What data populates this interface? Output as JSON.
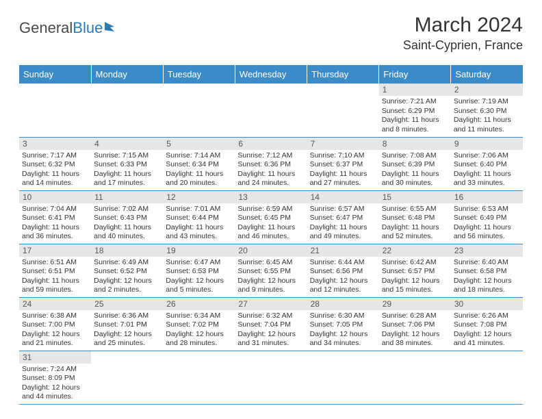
{
  "branding": {
    "logo_part1": "General",
    "logo_part2": "Blue"
  },
  "header": {
    "month_title": "March 2024",
    "location": "Saint-Cyprien, France"
  },
  "colors": {
    "header_bg": "#3b8bc9",
    "header_text": "#ffffff",
    "daynum_bg": "#e6e6e6",
    "border": "#3b8bc9"
  },
  "weekdays": [
    "Sunday",
    "Monday",
    "Tuesday",
    "Wednesday",
    "Thursday",
    "Friday",
    "Saturday"
  ],
  "weeks": [
    [
      null,
      null,
      null,
      null,
      null,
      {
        "n": "1",
        "sr": "7:21 AM",
        "ss": "6:29 PM",
        "dl": "11 hours and 8 minutes."
      },
      {
        "n": "2",
        "sr": "7:19 AM",
        "ss": "6:30 PM",
        "dl": "11 hours and 11 minutes."
      }
    ],
    [
      {
        "n": "3",
        "sr": "7:17 AM",
        "ss": "6:32 PM",
        "dl": "11 hours and 14 minutes."
      },
      {
        "n": "4",
        "sr": "7:15 AM",
        "ss": "6:33 PM",
        "dl": "11 hours and 17 minutes."
      },
      {
        "n": "5",
        "sr": "7:14 AM",
        "ss": "6:34 PM",
        "dl": "11 hours and 20 minutes."
      },
      {
        "n": "6",
        "sr": "7:12 AM",
        "ss": "6:36 PM",
        "dl": "11 hours and 24 minutes."
      },
      {
        "n": "7",
        "sr": "7:10 AM",
        "ss": "6:37 PM",
        "dl": "11 hours and 27 minutes."
      },
      {
        "n": "8",
        "sr": "7:08 AM",
        "ss": "6:39 PM",
        "dl": "11 hours and 30 minutes."
      },
      {
        "n": "9",
        "sr": "7:06 AM",
        "ss": "6:40 PM",
        "dl": "11 hours and 33 minutes."
      }
    ],
    [
      {
        "n": "10",
        "sr": "7:04 AM",
        "ss": "6:41 PM",
        "dl": "11 hours and 36 minutes."
      },
      {
        "n": "11",
        "sr": "7:02 AM",
        "ss": "6:43 PM",
        "dl": "11 hours and 40 minutes."
      },
      {
        "n": "12",
        "sr": "7:01 AM",
        "ss": "6:44 PM",
        "dl": "11 hours and 43 minutes."
      },
      {
        "n": "13",
        "sr": "6:59 AM",
        "ss": "6:45 PM",
        "dl": "11 hours and 46 minutes."
      },
      {
        "n": "14",
        "sr": "6:57 AM",
        "ss": "6:47 PM",
        "dl": "11 hours and 49 minutes."
      },
      {
        "n": "15",
        "sr": "6:55 AM",
        "ss": "6:48 PM",
        "dl": "11 hours and 52 minutes."
      },
      {
        "n": "16",
        "sr": "6:53 AM",
        "ss": "6:49 PM",
        "dl": "11 hours and 56 minutes."
      }
    ],
    [
      {
        "n": "17",
        "sr": "6:51 AM",
        "ss": "6:51 PM",
        "dl": "11 hours and 59 minutes."
      },
      {
        "n": "18",
        "sr": "6:49 AM",
        "ss": "6:52 PM",
        "dl": "12 hours and 2 minutes."
      },
      {
        "n": "19",
        "sr": "6:47 AM",
        "ss": "6:53 PM",
        "dl": "12 hours and 5 minutes."
      },
      {
        "n": "20",
        "sr": "6:45 AM",
        "ss": "6:55 PM",
        "dl": "12 hours and 9 minutes."
      },
      {
        "n": "21",
        "sr": "6:44 AM",
        "ss": "6:56 PM",
        "dl": "12 hours and 12 minutes."
      },
      {
        "n": "22",
        "sr": "6:42 AM",
        "ss": "6:57 PM",
        "dl": "12 hours and 15 minutes."
      },
      {
        "n": "23",
        "sr": "6:40 AM",
        "ss": "6:58 PM",
        "dl": "12 hours and 18 minutes."
      }
    ],
    [
      {
        "n": "24",
        "sr": "6:38 AM",
        "ss": "7:00 PM",
        "dl": "12 hours and 21 minutes."
      },
      {
        "n": "25",
        "sr": "6:36 AM",
        "ss": "7:01 PM",
        "dl": "12 hours and 25 minutes."
      },
      {
        "n": "26",
        "sr": "6:34 AM",
        "ss": "7:02 PM",
        "dl": "12 hours and 28 minutes."
      },
      {
        "n": "27",
        "sr": "6:32 AM",
        "ss": "7:04 PM",
        "dl": "12 hours and 31 minutes."
      },
      {
        "n": "28",
        "sr": "6:30 AM",
        "ss": "7:05 PM",
        "dl": "12 hours and 34 minutes."
      },
      {
        "n": "29",
        "sr": "6:28 AM",
        "ss": "7:06 PM",
        "dl": "12 hours and 38 minutes."
      },
      {
        "n": "30",
        "sr": "6:26 AM",
        "ss": "7:08 PM",
        "dl": "12 hours and 41 minutes."
      }
    ],
    [
      {
        "n": "31",
        "sr": "7:24 AM",
        "ss": "8:09 PM",
        "dl": "12 hours and 44 minutes."
      },
      null,
      null,
      null,
      null,
      null,
      null
    ]
  ],
  "labels": {
    "sunrise": "Sunrise:",
    "sunset": "Sunset:",
    "daylight": "Daylight:"
  }
}
